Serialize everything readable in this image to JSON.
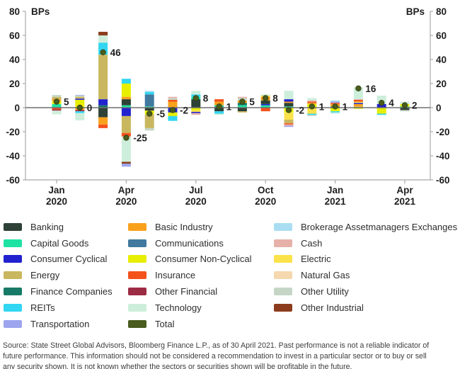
{
  "chart_data": {
    "type": "stacked_bar",
    "title": "",
    "unit_left": "BPs",
    "unit_right": "BPs",
    "ylim": [
      -60,
      80
    ],
    "yticks": [
      80,
      60,
      40,
      20,
      0,
      -20,
      -40,
      -60
    ],
    "x_ticks": [
      {
        "line1": "Jan",
        "line2": "2020",
        "month_index": 0
      },
      {
        "line1": "Apr",
        "line2": "2020",
        "month_index": 3
      },
      {
        "line1": "Jul",
        "line2": "2020",
        "month_index": 6
      },
      {
        "line1": "Oct",
        "line2": "2020",
        "month_index": 9
      },
      {
        "line1": "Jan",
        "line2": "2021",
        "month_index": 12
      },
      {
        "line1": "Apr",
        "line2": "2021",
        "month_index": 15
      }
    ],
    "categories": [
      "Jan 2020",
      "Feb 2020",
      "Mar 2020",
      "Apr 2020",
      "May 2020",
      "Jun 2020",
      "Jul 2020",
      "Aug 2020",
      "Sep 2020",
      "Oct 2020",
      "Nov 2020",
      "Dec 2020",
      "Jan 2021",
      "Feb 2021",
      "Mar 2021",
      "Apr 2021"
    ],
    "totals": [
      5,
      0,
      46,
      -25,
      -5,
      -2,
      8,
      1,
      5,
      8,
      -2,
      1,
      1,
      16,
      4,
      2
    ],
    "total_series_name": "Total",
    "total_color": "#4a5c1e",
    "sector_colors": {
      "Banking": "#2e4137",
      "Capital Goods": "#1ee2a2",
      "Consumer Cyclical": "#2222cf",
      "Energy": "#c9b75f",
      "Finance Companies": "#177a66",
      "REITs": "#30d6f2",
      "Transportation": "#9da5ef",
      "Basic Industry": "#f9a11c",
      "Communications": "#41799f",
      "Consumer Non-Cyclical": "#e7ee00",
      "Insurance": "#f4521d",
      "Other Financial": "#9c2b44",
      "Technology": "#cdeedb",
      "Total": "#4a5c1e",
      "Brokerage Assetmanagers Exchanges": "#a9def2",
      "Cash": "#e6b1a9",
      "Electric": "#fbe24a",
      "Natural Gas": "#f6d8ae",
      "Other Utility": "#c5d6c6",
      "Other Industrial": "#8c3c1c"
    },
    "bars": [
      {
        "month": "Jan 2020",
        "total": 5,
        "pos": [
          [
            "Capital Goods",
            3
          ],
          [
            "Consumer Non-Cyclical",
            2.5
          ],
          [
            "Basic Industry",
            1.5
          ],
          [
            "Energy",
            2
          ],
          [
            "Other Utility",
            1.5
          ]
        ],
        "neg": [
          [
            "Insurance",
            1.5
          ],
          [
            "Other Financial",
            1
          ],
          [
            "Technology",
            3
          ]
        ]
      },
      {
        "month": "Feb 2020",
        "total": 0,
        "pos": [
          [
            "Consumer Non-Cyclical",
            6.5
          ],
          [
            "Consumer Cyclical",
            1
          ],
          [
            "Energy",
            1.5
          ],
          [
            "Other Utility",
            1
          ],
          [
            "Transportation",
            0.5
          ]
        ],
        "neg": [
          [
            "Basic Industry",
            2
          ],
          [
            "Other Financial",
            1
          ],
          [
            "REITs",
            1.5
          ],
          [
            "Technology",
            6
          ]
        ]
      },
      {
        "month": "Mar 2020",
        "total": 46,
        "pos": [
          [
            "Finance Companies",
            2
          ],
          [
            "Consumer Cyclical",
            5
          ],
          [
            "Energy",
            37
          ],
          [
            "REITs",
            10
          ],
          [
            "Technology",
            6
          ],
          [
            "Other Industrial",
            3
          ]
        ],
        "neg": [
          [
            "Banking",
            8
          ],
          [
            "Basic Industry",
            6
          ],
          [
            "Insurance",
            3
          ]
        ]
      },
      {
        "month": "Apr 2020",
        "total": -25,
        "pos": [
          [
            "Capital Goods",
            2
          ],
          [
            "Banking",
            5
          ],
          [
            "Basic Industry",
            2
          ],
          [
            "Consumer Non-Cyclical",
            11
          ],
          [
            "REITs",
            4
          ]
        ],
        "neg": [
          [
            "Consumer Cyclical",
            7
          ],
          [
            "Energy",
            14
          ],
          [
            "Insurance",
            3
          ],
          [
            "Technology",
            21
          ],
          [
            "Other Industrial",
            1.5
          ],
          [
            "Transportation",
            2.5
          ]
        ]
      },
      {
        "month": "May 2020",
        "total": -5,
        "pos": [
          [
            "Capital Goods",
            1
          ],
          [
            "Communications",
            10
          ],
          [
            "REITs",
            2
          ],
          [
            "Brokerage Assetmanagers Exchanges",
            1
          ]
        ],
        "neg": [
          [
            "Banking",
            2.5
          ],
          [
            "Consumer Non-Cyclical",
            3
          ],
          [
            "Energy",
            11.5
          ],
          [
            "Other Utility",
            2
          ]
        ]
      },
      {
        "month": "Jun 2020",
        "total": -2,
        "pos": [
          [
            "Basic Industry",
            5
          ],
          [
            "Insurance",
            1.5
          ],
          [
            "Other Utility",
            1.5
          ],
          [
            "Cash",
            1
          ]
        ],
        "neg": [
          [
            "Consumer Cyclical",
            4
          ],
          [
            "Consumer Non-Cyclical",
            3
          ],
          [
            "REITs",
            4
          ]
        ]
      },
      {
        "month": "Jul 2020",
        "total": 8,
        "pos": [
          [
            "Banking",
            7
          ],
          [
            "Capital Goods",
            2
          ],
          [
            "REITs",
            2
          ],
          [
            "Technology",
            3
          ]
        ],
        "neg": [
          [
            "Consumer Non-Cyclical",
            2
          ],
          [
            "Electric",
            1.5
          ],
          [
            "Consumer Cyclical",
            1
          ],
          [
            "Cash",
            1.5
          ]
        ]
      },
      {
        "month": "Aug 2020",
        "total": 1,
        "pos": [
          [
            "Finance Companies",
            1
          ],
          [
            "Capital Goods",
            1
          ],
          [
            "Basic Industry",
            3
          ],
          [
            "Insurance",
            2
          ]
        ],
        "neg": [
          [
            "Banking",
            3
          ],
          [
            "REITs",
            2
          ],
          [
            "Technology",
            1
          ]
        ]
      },
      {
        "month": "Sep 2020",
        "total": 5,
        "pos": [
          [
            "Capital Goods",
            2
          ],
          [
            "Finance Companies",
            2
          ],
          [
            "Basic Industry",
            2
          ],
          [
            "Other Utility",
            2
          ],
          [
            "Cash",
            1
          ]
        ],
        "neg": [
          [
            "Banking",
            3
          ],
          [
            "Energy",
            1
          ]
        ]
      },
      {
        "month": "Oct 2020",
        "total": 8,
        "pos": [
          [
            "Capital Goods",
            2
          ],
          [
            "Consumer Cyclical",
            1
          ],
          [
            "Banking",
            3
          ],
          [
            "Basic Industry",
            3
          ],
          [
            "Electric",
            1
          ],
          [
            "Technology",
            1
          ]
        ],
        "neg": [
          [
            "Insurance",
            3
          ]
        ]
      },
      {
        "month": "Nov 2020",
        "total": -2,
        "pos": [
          [
            "Capital Goods",
            1
          ],
          [
            "Banking",
            3
          ],
          [
            "Basic Industry",
            1
          ],
          [
            "Consumer Cyclical",
            2
          ],
          [
            "Technology",
            7
          ]
        ],
        "neg": [
          [
            "Consumer Non-Cyclical",
            4
          ],
          [
            "Electric",
            6
          ],
          [
            "Energy",
            3
          ],
          [
            "Insurance",
            1
          ],
          [
            "Cash",
            1
          ],
          [
            "Transportation",
            1
          ]
        ]
      },
      {
        "month": "Dec 2020",
        "total": 1,
        "pos": [
          [
            "Consumer Non-Cyclical",
            3
          ],
          [
            "Basic Industry",
            1
          ],
          [
            "Insurance",
            1
          ],
          [
            "Cash",
            1
          ],
          [
            "Technology",
            2
          ]
        ],
        "neg": [
          [
            "Electric",
            5
          ],
          [
            "REITs",
            1
          ],
          [
            "Other Utility",
            1
          ]
        ]
      },
      {
        "month": "Jan 2021",
        "total": 1,
        "pos": [
          [
            "Finance Companies",
            1
          ],
          [
            "Basic Industry",
            2
          ],
          [
            "Insurance",
            1
          ],
          [
            "Transportation",
            1
          ],
          [
            "Brokerage Assetmanagers Exchanges",
            1
          ]
        ],
        "neg": [
          [
            "Consumer Non-Cyclical",
            3
          ],
          [
            "REITs",
            1
          ],
          [
            "Technology",
            1
          ]
        ]
      },
      {
        "month": "Feb 2021",
        "total": 16,
        "pos": [
          [
            "Energy",
            1
          ],
          [
            "Basic Industry",
            2
          ],
          [
            "Consumer Cyclical",
            1
          ],
          [
            "Electric",
            1
          ],
          [
            "Insurance",
            1.5
          ],
          [
            "Cash",
            0.5
          ],
          [
            "Technology",
            10
          ]
        ],
        "neg": [
          [
            "Consumer Non-Cyclical",
            1
          ]
        ]
      },
      {
        "month": "Mar 2021",
        "total": 4,
        "pos": [
          [
            "Consumer Cyclical",
            3
          ],
          [
            "Technology",
            7
          ]
        ],
        "neg": [
          [
            "Consumer Non-Cyclical",
            5
          ],
          [
            "REITs",
            1
          ]
        ]
      },
      {
        "month": "Apr 2021",
        "total": 2,
        "pos": [
          [
            "Capital Goods",
            1
          ],
          [
            "Consumer Non-Cyclical",
            2
          ],
          [
            "Technology",
            2
          ]
        ],
        "neg": [
          [
            "Banking",
            2
          ],
          [
            "Other Utility",
            1
          ]
        ]
      }
    ]
  },
  "legend": {
    "columns": [
      [
        "Banking",
        "Capital Goods",
        "Consumer Cyclical",
        "Energy",
        "Finance Companies",
        "REITs",
        "Transportation"
      ],
      [
        "Basic Industry",
        "Communications",
        "Consumer Non-Cyclical",
        "Insurance",
        "Other Financial",
        "Technology",
        "Total"
      ],
      [
        "Brokerage Assetmanagers Exchanges",
        "Cash",
        "Electric",
        "Natural Gas",
        "Other Utility",
        "Other Industrial"
      ]
    ]
  },
  "source": {
    "lines": [
      "Source: State Street Global Advisors, Bloomberg Finance L.P., as of 30 April 2021. Past performance is not a reliable indicator of",
      "future performance. This information should not be considered a recommendation to invest in a particular sector or to buy or sell",
      "any security shown. It is not known whether the sectors or securities shown will be profitable in the future."
    ]
  }
}
